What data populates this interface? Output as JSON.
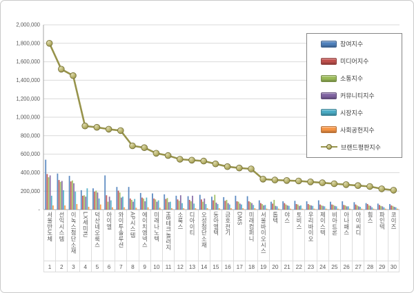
{
  "chart_data": {
    "type": "bar",
    "combo": "grouped-bars-with-line-overlay",
    "title": "",
    "xlabel": "",
    "ylabel": "",
    "ylim": [
      0,
      2000000
    ],
    "ytick_step": 200000,
    "ytick_labels": [
      "-",
      "200,000",
      "400,000",
      "600,000",
      "800,000",
      "1,000,000",
      "1,200,000",
      "1,400,000",
      "1,600,000",
      "1,800,000",
      "2,000,000"
    ],
    "grid": true,
    "legend_position": "top-right",
    "categories": [
      "서울반도체",
      "선익시스템",
      "이녹스첨단소재",
      "LX세미콘",
      "덕산네오룩스",
      "아이엘",
      "와이투솔루션",
      "AP시스템",
      "에이치엠넥스",
      "미래나노텍",
      "HB테크놀러지",
      "소룩스",
      "디아이티",
      "오성첨단소재",
      "동아엘텍",
      "금호전기",
      "DMS",
      "미래컴퍼니",
      "서울바이오시스",
      "톱텍",
      "야스",
      "토비스",
      "우리바이오",
      "제이스텍",
      "비아트론",
      "아나패스",
      "아이씨디",
      "힘스",
      "파인텍",
      "코이즈"
    ],
    "ranks": [
      1,
      2,
      3,
      4,
      5,
      6,
      7,
      8,
      9,
      10,
      11,
      12,
      13,
      14,
      15,
      16,
      17,
      18,
      19,
      20,
      21,
      22,
      23,
      24,
      25,
      26,
      27,
      28,
      29,
      30
    ],
    "series": [
      {
        "name": "참여지수",
        "color": "#4F81BD",
        "values": [
          540000,
          390000,
          365000,
          210000,
          230000,
          370000,
          245000,
          245000,
          180000,
          175000,
          165000,
          150000,
          145000,
          160000,
          140000,
          135000,
          150000,
          145000,
          100000,
          85000,
          90000,
          95000,
          90000,
          100000,
          85000,
          90000,
          80000,
          70000,
          65000,
          60000
        ]
      },
      {
        "name": "미디어지수",
        "color": "#C0504D",
        "values": [
          385000,
          320000,
          305000,
          150000,
          195000,
          155000,
          205000,
          120000,
          130000,
          120000,
          115000,
          110000,
          105000,
          110000,
          100000,
          95000,
          90000,
          90000,
          70000,
          65000,
          70000,
          60000,
          60000,
          55000,
          55000,
          50000,
          55000,
          60000,
          50000,
          45000
        ]
      },
      {
        "name": "소통지수",
        "color": "#9BBB59",
        "values": [
          350000,
          300000,
          315000,
          155000,
          205000,
          85000,
          185000,
          105000,
          120000,
          110000,
          125000,
          95000,
          90000,
          85000,
          160000,
          105000,
          85000,
          80000,
          60000,
          105000,
          55000,
          55000,
          50000,
          45000,
          50000,
          45000,
          45000,
          45000,
          40000,
          40000
        ]
      },
      {
        "name": "커뮤니티지수",
        "color": "#8064A2",
        "values": [
          370000,
          310000,
          285000,
          140000,
          185000,
          140000,
          130000,
          85000,
          90000,
          85000,
          80000,
          155000,
          150000,
          120000,
          75000,
          70000,
          65000,
          70000,
          45000,
          40000,
          45000,
          40000,
          45000,
          40000,
          40000,
          35000,
          35000,
          40000,
          35000,
          30000
        ]
      },
      {
        "name": "시장지수",
        "color": "#4BACC6",
        "values": [
          150000,
          210000,
          195000,
          230000,
          120000,
          100000,
          140000,
          115000,
          130000,
          100000,
          85000,
          70000,
          65000,
          60000,
          60000,
          55000,
          55000,
          50000,
          50000,
          35000,
          40000,
          45000,
          40000,
          35000,
          35000,
          35000,
          30000,
          25000,
          25000,
          25000
        ]
      },
      {
        "name": "사회공헌지수",
        "color": "#F79646",
        "values": [
          45000,
          45000,
          60000,
          30000,
          55000,
          25000,
          25000,
          20000,
          25000,
          20000,
          15000,
          15000,
          15000,
          15000,
          15000,
          15000,
          15000,
          15000,
          10000,
          10000,
          10000,
          10000,
          10000,
          10000,
          10000,
          10000,
          10000,
          10000,
          10000,
          10000
        ]
      }
    ],
    "line_series": {
      "name": "브랜드평판지수",
      "color": "#97934B",
      "marker_fill": "#B5B068",
      "marker_stroke": "#716D33",
      "values": [
        1800000,
        1520000,
        1450000,
        905000,
        890000,
        870000,
        855000,
        690000,
        670000,
        610000,
        585000,
        545000,
        535000,
        525000,
        495000,
        465000,
        450000,
        440000,
        330000,
        320000,
        315000,
        310000,
        300000,
        290000,
        280000,
        270000,
        260000,
        250000,
        225000,
        210000
      ]
    },
    "axis_color": "#a6a6a6",
    "grid_color": "#d9d9d9",
    "tick_text_color": "#595959"
  }
}
